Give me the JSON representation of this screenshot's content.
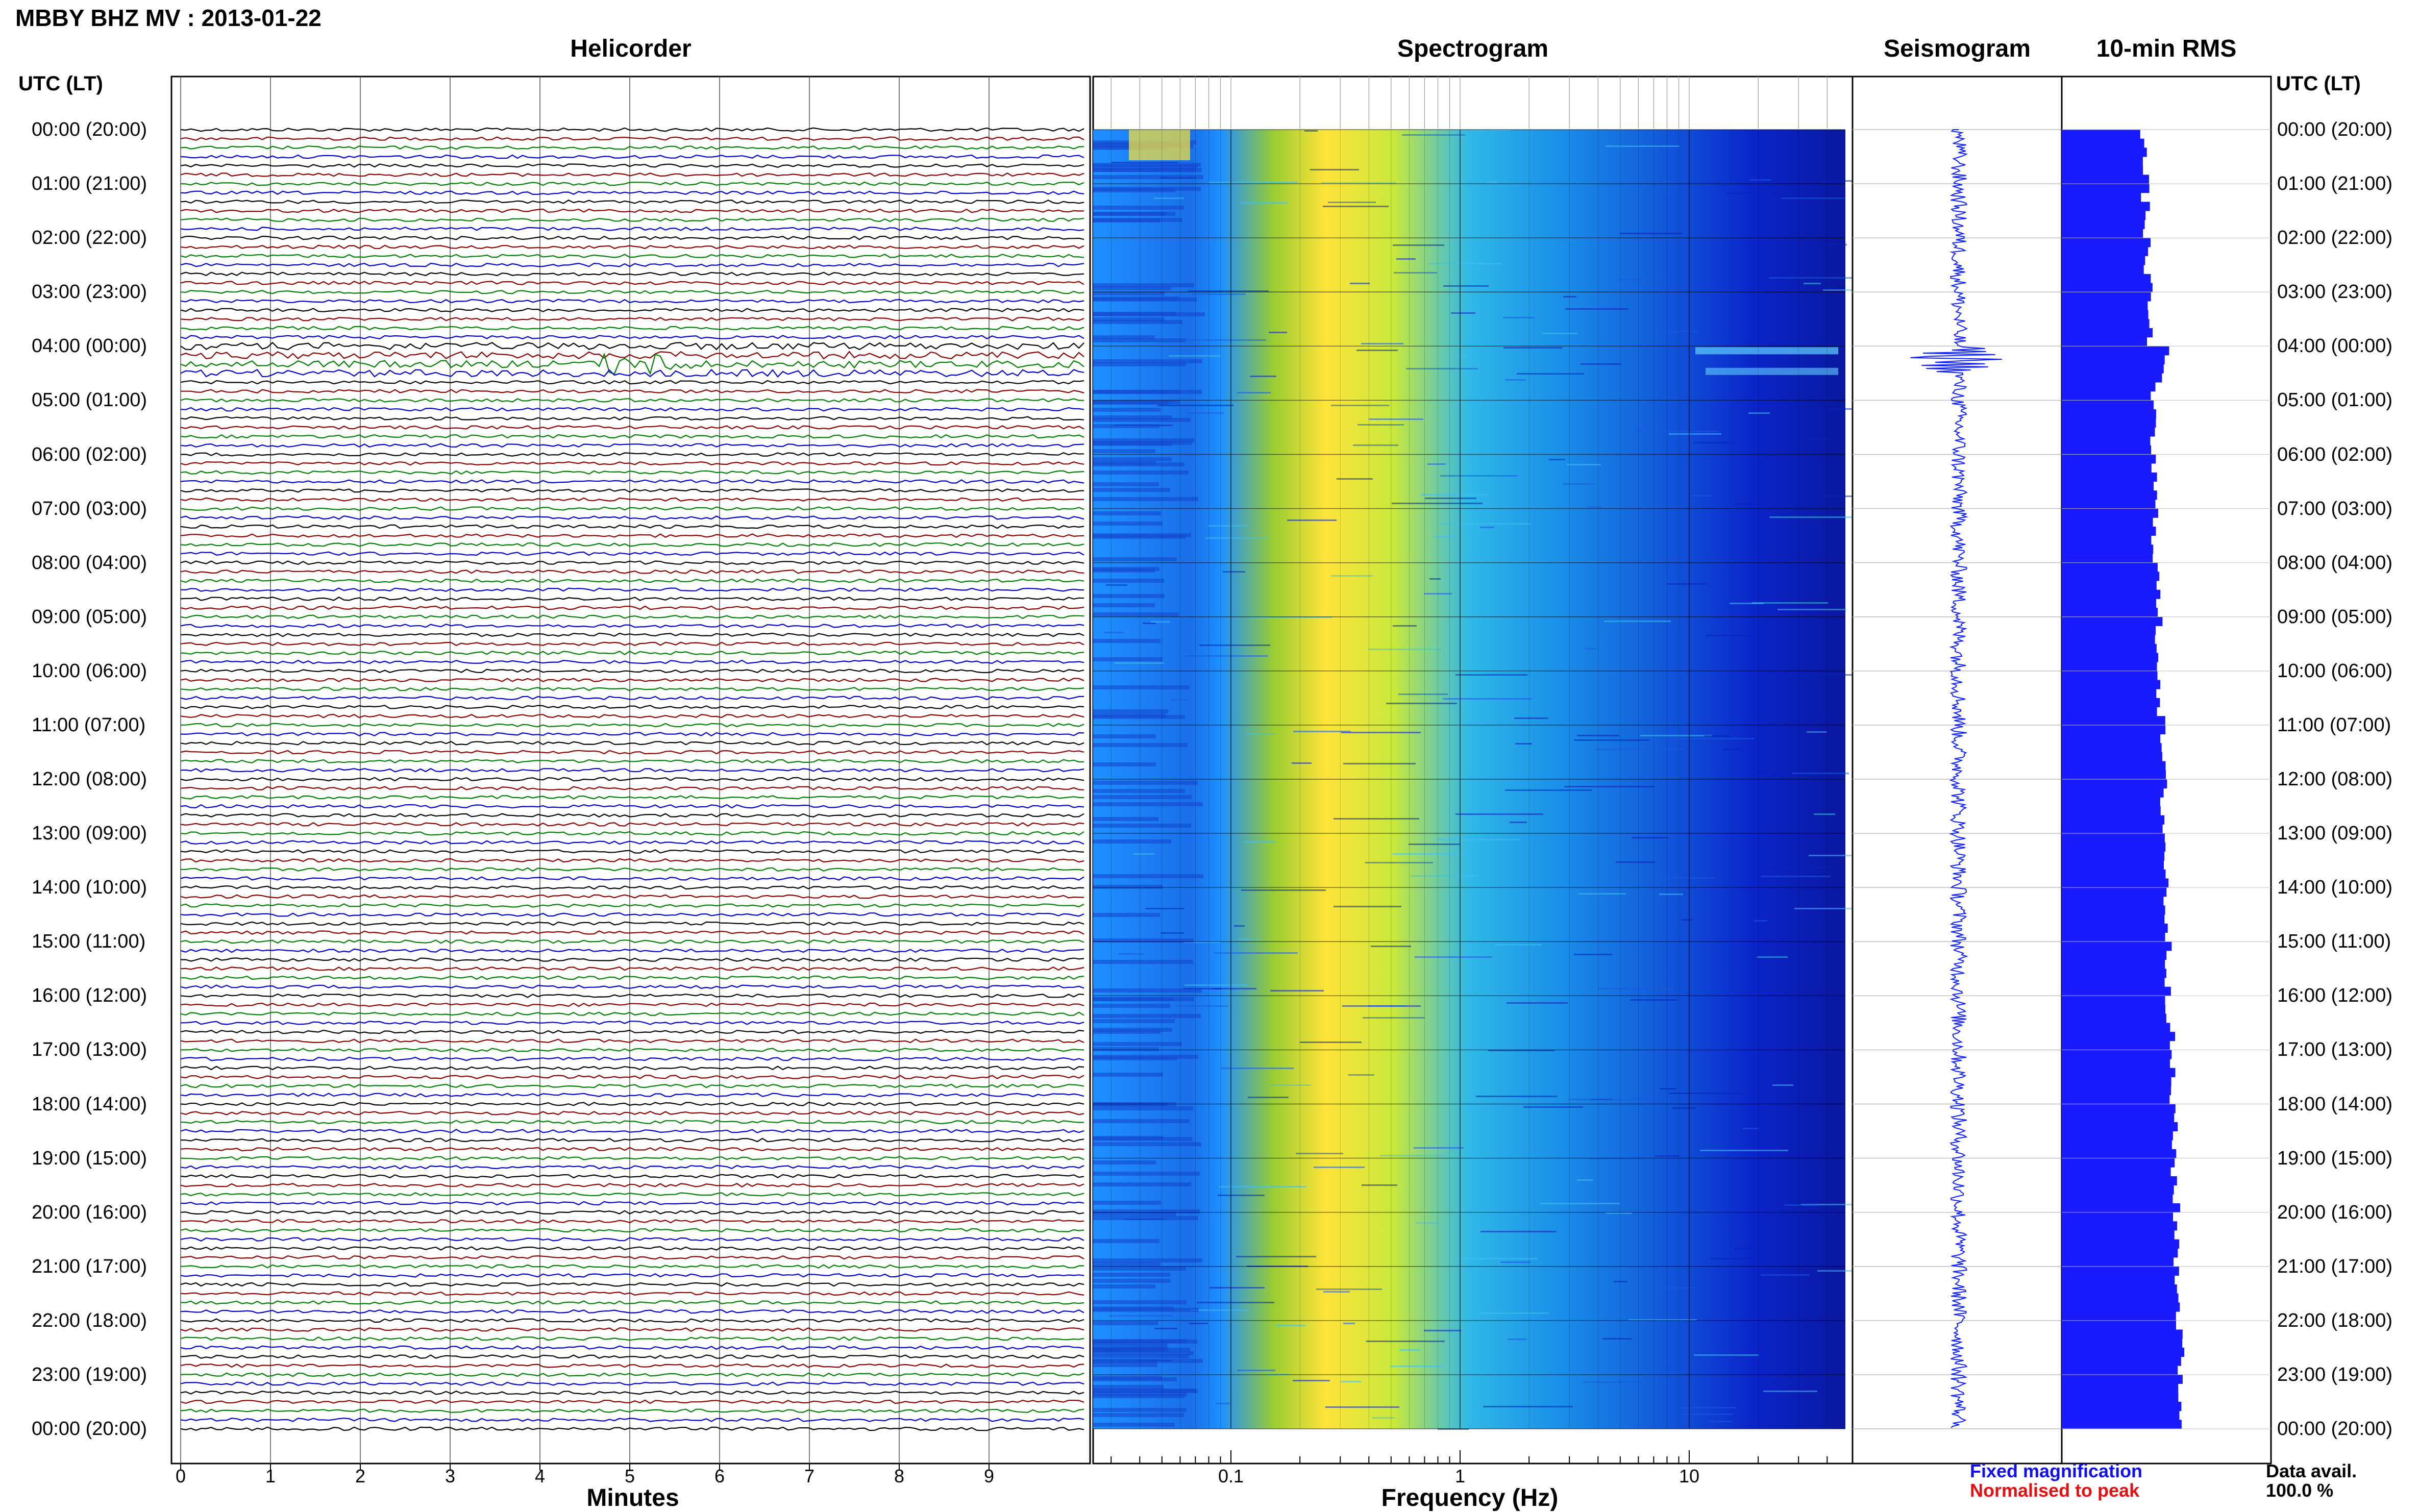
{
  "title": "MBBY BHZ MV : 2013-01-22",
  "panels": {
    "helicorder": "Helicorder",
    "spectrogram": "Spectrogram",
    "seismogram": "Seismogram",
    "rms": "10-min RMS"
  },
  "utc_header": "UTC (LT)",
  "time_labels": [
    "00:00 (20:00)",
    "01:00 (21:00)",
    "02:00 (22:00)",
    "03:00 (23:00)",
    "04:00 (00:00)",
    "05:00 (01:00)",
    "06:00 (02:00)",
    "07:00 (03:00)",
    "08:00 (04:00)",
    "09:00 (05:00)",
    "10:00 (06:00)",
    "11:00 (07:00)",
    "12:00 (08:00)",
    "13:00 (09:00)",
    "14:00 (10:00)",
    "15:00 (11:00)",
    "16:00 (12:00)",
    "17:00 (13:00)",
    "18:00 (14:00)",
    "19:00 (15:00)",
    "20:00 (16:00)",
    "21:00 (17:00)",
    "22:00 (18:00)",
    "23:00 (19:00)",
    "00:00 (20:00)"
  ],
  "axes": {
    "minutes_label": "Minutes",
    "frequency_label": "Frequency (Hz)",
    "minute_ticks": [
      "0",
      "1",
      "2",
      "3",
      "4",
      "5",
      "6",
      "7",
      "8",
      "9"
    ],
    "frequency_ticks": [
      "0.1",
      "1",
      "10"
    ]
  },
  "legend": {
    "fixed": "Fixed magnification",
    "normalised": "Normalised to peak"
  },
  "data_avail": {
    "label": "Data avail.",
    "value": "100.0 %"
  },
  "colors": {
    "trace_cycle": [
      "#000000",
      "#8b0000",
      "#008000",
      "#0000cc"
    ],
    "seismogram": "#1020ff",
    "rms": "#1a1aff",
    "fixed_legend": "#1010ee",
    "normalised_legend": "#e41010"
  },
  "chart_data": [
    {
      "type": "line",
      "name": "helicorder",
      "x_unit": "minutes",
      "xlim": [
        0,
        10
      ],
      "rows": 144,
      "row_minutes": 10,
      "event_rows": [
        24,
        25,
        26,
        27
      ]
    },
    {
      "type": "heatmap",
      "name": "spectrogram",
      "x_scale": "log",
      "xlim": [
        0.01,
        50
      ],
      "y_unit": "hours UTC",
      "ylim": [
        0,
        24
      ]
    },
    {
      "type": "line",
      "name": "seismogram",
      "ylim": [
        0,
        24
      ],
      "event_hour": 4.25
    },
    {
      "type": "bar",
      "name": "10-min RMS",
      "bins": 144,
      "y_unit": "hours UTC",
      "ylim": [
        0,
        24
      ]
    }
  ]
}
